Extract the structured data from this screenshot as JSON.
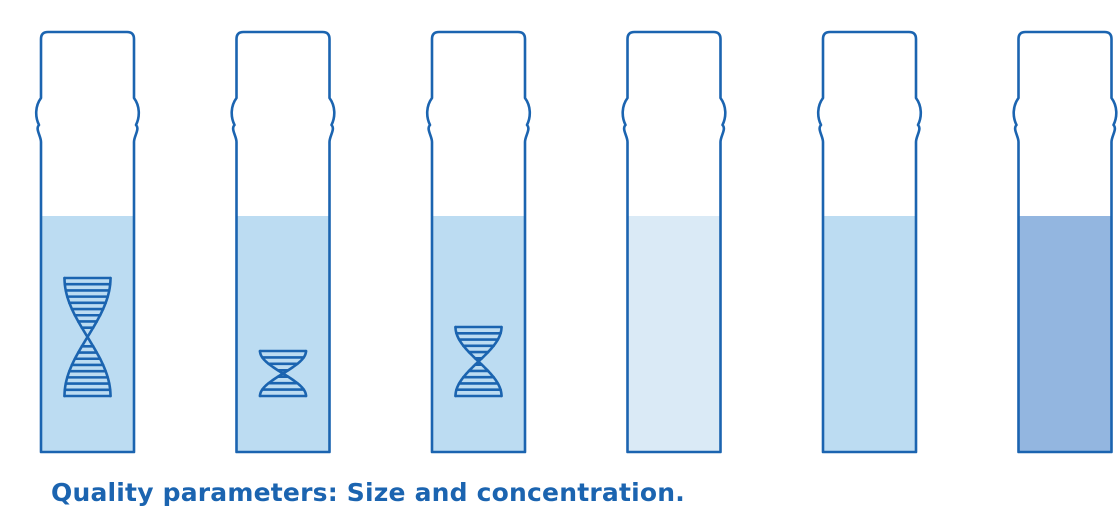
{
  "caption": "Quality parameters: Size and concentration.",
  "colors": {
    "outline": "#1b64b0",
    "caption": "#1b64b0",
    "liquid_light": "#daeaf6",
    "liquid_medium": "#bcdcf2",
    "liquid_dark": "#93b6e0"
  },
  "tubes": [
    {
      "liquid": "liquid_medium",
      "dna": "large"
    },
    {
      "liquid": "liquid_medium",
      "dna": "small"
    },
    {
      "liquid": "liquid_medium",
      "dna": "medium"
    },
    {
      "liquid": "liquid_light",
      "dna": "none"
    },
    {
      "liquid": "liquid_medium",
      "dna": "none"
    },
    {
      "liquid": "liquid_dark",
      "dna": "none"
    }
  ]
}
